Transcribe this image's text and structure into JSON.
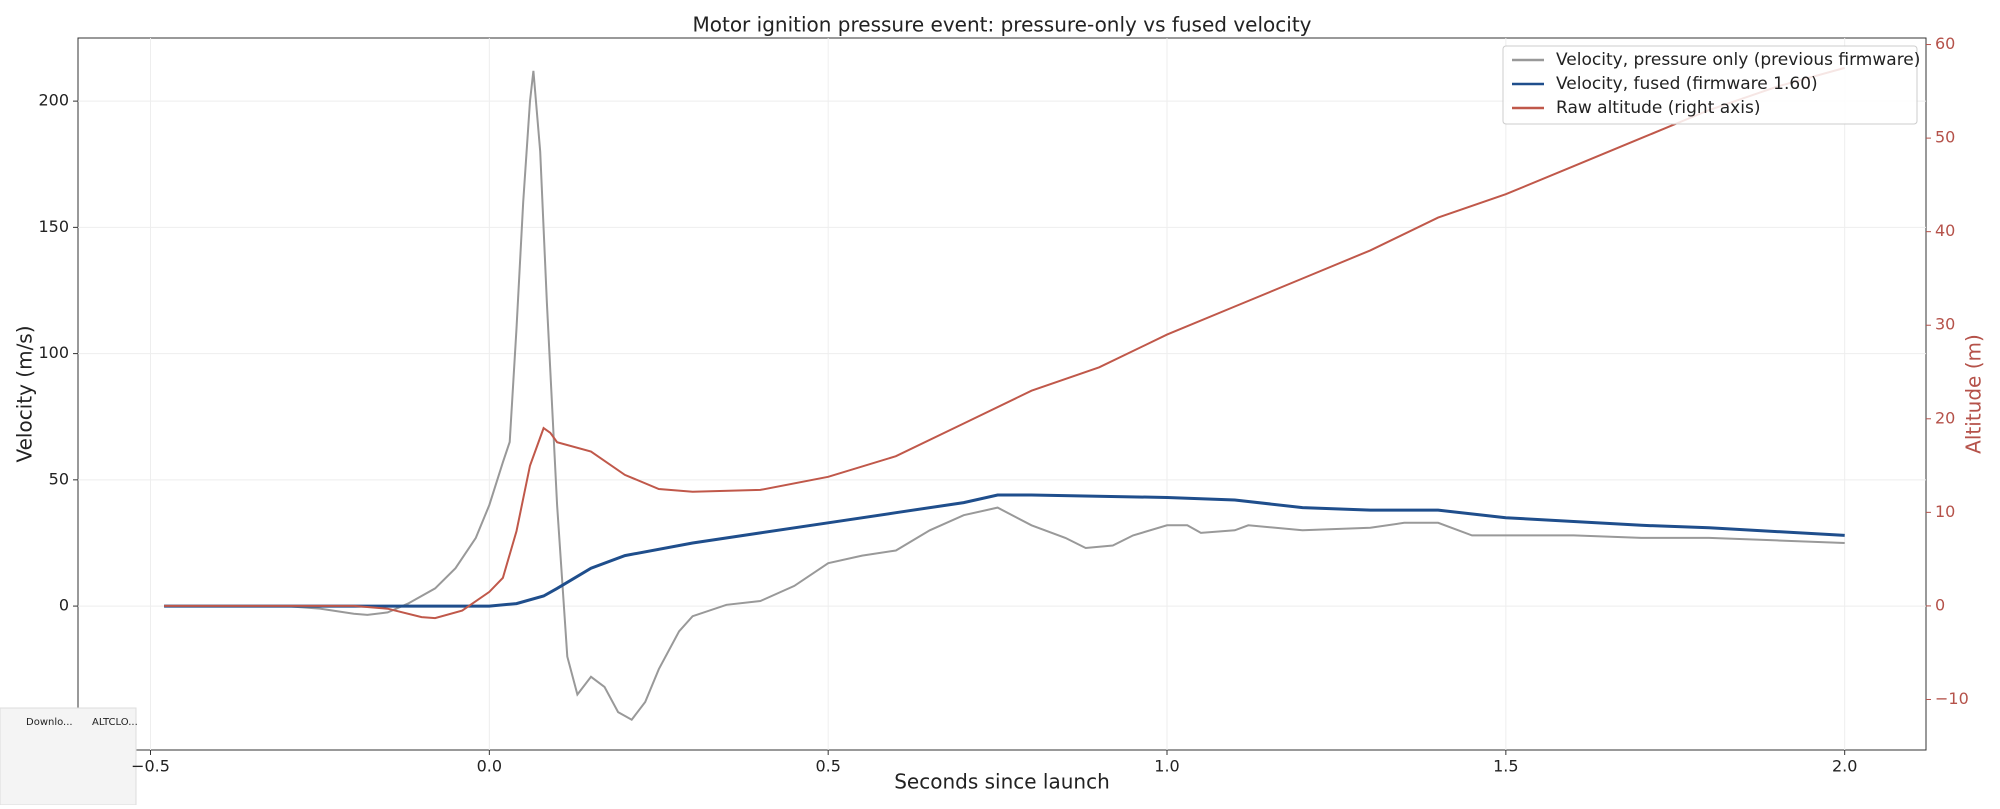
{
  "chart_data": {
    "type": "line",
    "title": "Motor ignition pressure event: pressure-only vs fused velocity",
    "xlabel": "Seconds since launch",
    "ylabel": "Velocity (m/s)",
    "y2label": "Altitude (m)",
    "xlim": [
      -0.607,
      2.12
    ],
    "ylim": [
      -57,
      225
    ],
    "y2lim": [
      -15.4,
      60.7
    ],
    "xticks": [
      {
        "value": -0.5,
        "label": "−0.5"
      },
      {
        "value": 0,
        "label": "0.0"
      },
      {
        "value": 0.5,
        "label": "0.5"
      },
      {
        "value": 1,
        "label": "1.0"
      },
      {
        "value": 1.5,
        "label": "1.5"
      },
      {
        "value": 2,
        "label": "2.0"
      }
    ],
    "yticks": [
      0,
      50,
      100,
      150,
      200
    ],
    "y2ticks": [
      {
        "value": -10,
        "label": "−10"
      },
      0,
      10,
      20,
      30,
      40,
      50,
      60
    ],
    "grid": true,
    "legend": "upper right",
    "y2color": "#b5524a",
    "series": [
      {
        "name": "Velocity, pressure only (previous firmware)",
        "color": "#999999",
        "axis": "y",
        "x": [
          -0.48,
          -0.3,
          -0.25,
          -0.2,
          -0.18,
          -0.15,
          -0.12,
          -0.08,
          -0.05,
          -0.02,
          0,
          0.02,
          0.03,
          0.04,
          0.05,
          0.06,
          0.065,
          0.075,
          0.085,
          0.1,
          0.115,
          0.13,
          0.15,
          0.17,
          0.19,
          0.21,
          0.23,
          0.25,
          0.28,
          0.3,
          0.35,
          0.4,
          0.45,
          0.5,
          0.55,
          0.6,
          0.65,
          0.7,
          0.75,
          0.8,
          0.85,
          0.88,
          0.92,
          0.95,
          1.0,
          1.03,
          1.05,
          1.1,
          1.12,
          1.2,
          1.3,
          1.35,
          1.4,
          1.45,
          1.5,
          1.6,
          1.7,
          1.8,
          1.9,
          2.0
        ],
        "values": [
          0,
          0,
          -1,
          -3,
          -3.5,
          -2.5,
          1,
          7,
          15,
          27,
          40,
          57,
          65,
          110,
          160,
          200,
          212,
          180,
          120,
          40,
          -20,
          -35,
          -28,
          -32,
          -42,
          -45,
          -38,
          -25,
          -10,
          -4,
          0.5,
          2,
          8,
          17,
          20,
          22,
          30,
          36,
          39,
          32,
          27,
          23,
          24,
          28,
          32,
          32,
          29,
          30,
          32,
          30,
          31,
          33,
          33,
          28,
          28,
          28,
          27,
          27,
          26,
          25
        ]
      },
      {
        "name": "Velocity, fused (firmware 1.60)",
        "color": "#1f4e8c",
        "axis": "y",
        "x": [
          -0.48,
          0,
          0.04,
          0.08,
          0.1,
          0.15,
          0.2,
          0.3,
          0.4,
          0.5,
          0.6,
          0.7,
          0.75,
          0.8,
          1.0,
          1.1,
          1.2,
          1.3,
          1.4,
          1.5,
          1.6,
          1.7,
          1.8,
          1.9,
          2.0
        ],
        "values": [
          0,
          0,
          1,
          4,
          7,
          15,
          20,
          25,
          29,
          33,
          37,
          41,
          44,
          44,
          43,
          42,
          39,
          38,
          38,
          35,
          33.5,
          32,
          31,
          29.5,
          28
        ]
      },
      {
        "name": "Raw altitude (right axis)",
        "color": "#c0584a",
        "axis": "y2",
        "x": [
          -0.48,
          -0.2,
          -0.15,
          -0.1,
          -0.08,
          -0.04,
          0,
          0.02,
          0.04,
          0.06,
          0.08,
          0.09,
          0.1,
          0.15,
          0.2,
          0.25,
          0.3,
          0.4,
          0.5,
          0.6,
          0.7,
          0.8,
          0.9,
          1.0,
          1.1,
          1.2,
          1.3,
          1.4,
          1.5,
          1.6,
          1.7,
          1.8,
          1.9,
          2.0
        ],
        "values": [
          0,
          0,
          -0.3,
          -1.2,
          -1.3,
          -0.5,
          1.5,
          3,
          8,
          15,
          19,
          18.5,
          17.5,
          16.5,
          14,
          12.5,
          12.2,
          12.4,
          13.8,
          16,
          19.5,
          23,
          25.5,
          29,
          32,
          35,
          38,
          41.5,
          44,
          47,
          50,
          53,
          55.5,
          57.5
        ]
      }
    ]
  },
  "overlay": {
    "tabs": [
      "Downlo...",
      "ALTCLO..."
    ]
  }
}
